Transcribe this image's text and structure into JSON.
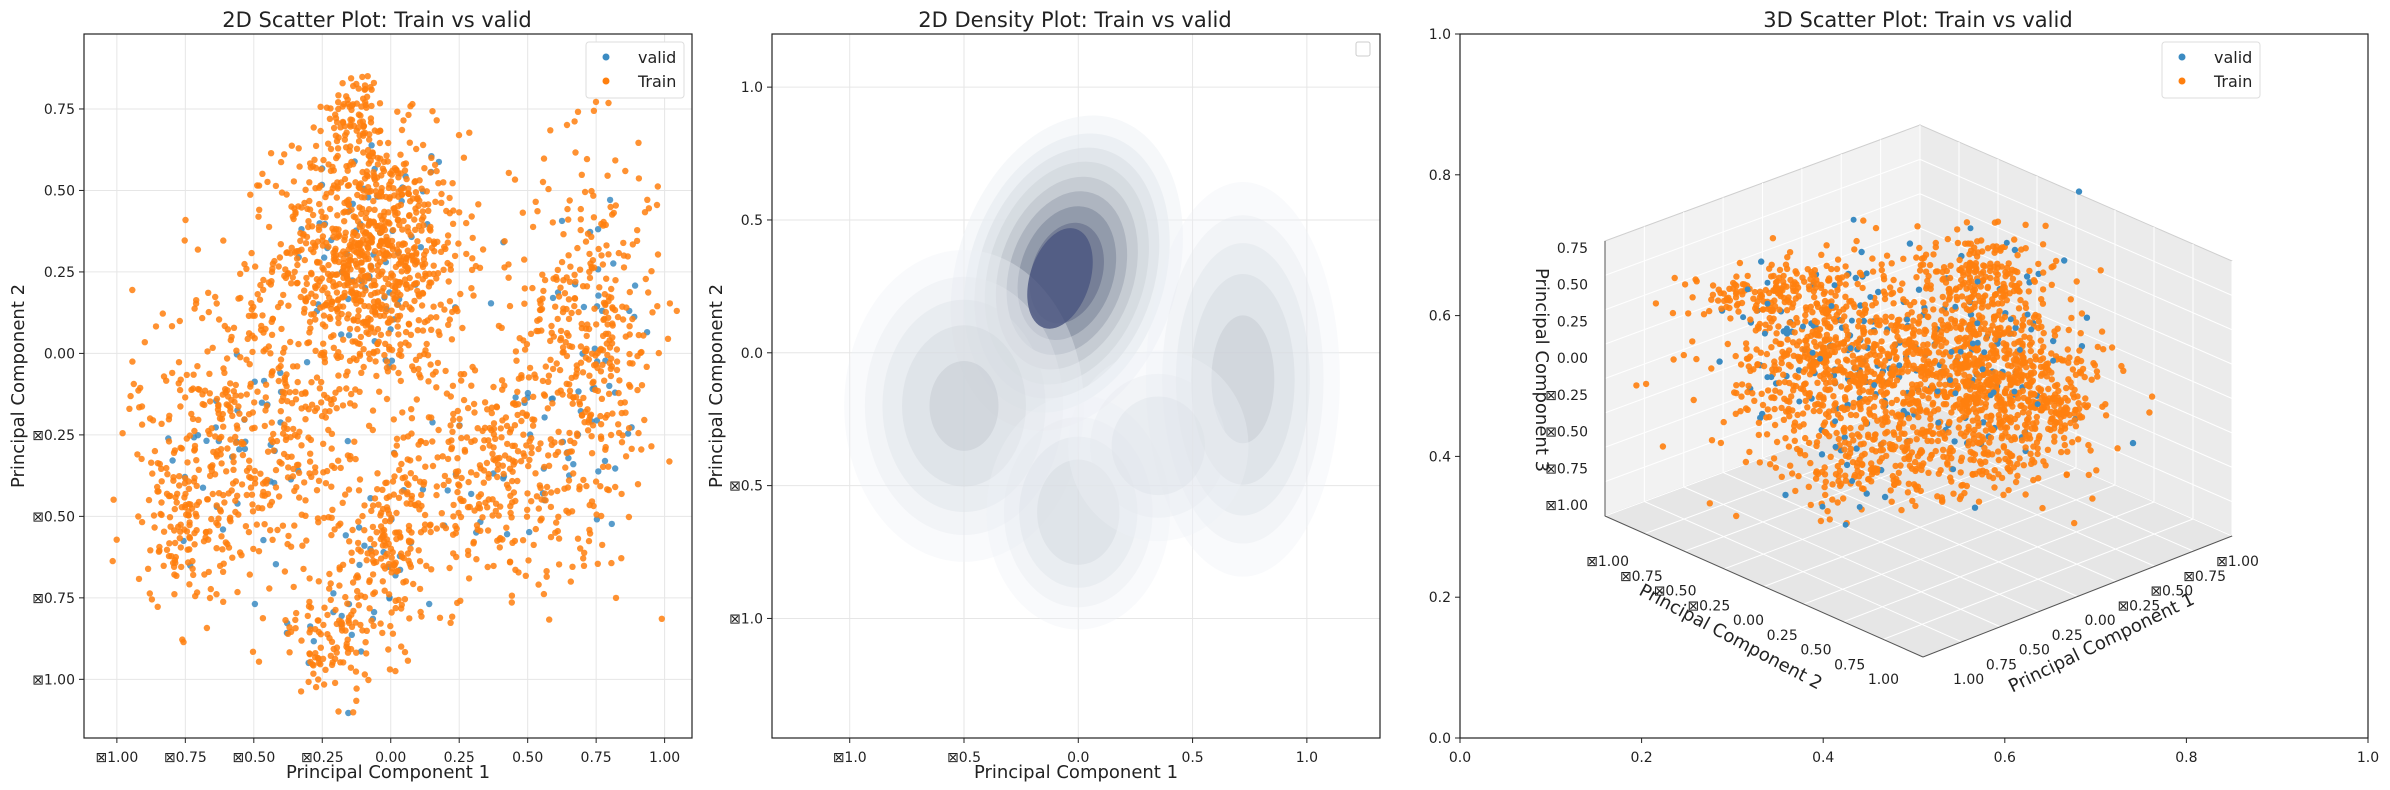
{
  "colors": {
    "valid": "#3b8bc2",
    "train": "#ff7f0e",
    "grid": "#e6e6e6",
    "axis": "#222222"
  },
  "chart_data": [
    {
      "type": "scatter",
      "title": "2D Scatter Plot: Train vs valid",
      "xlabel": "Principal Component 1",
      "ylabel": "Principal Component 2",
      "xlim": [
        -1.12,
        1.1
      ],
      "ylim": [
        -1.18,
        0.98
      ],
      "xticks": [
        -1.0,
        -0.75,
        -0.5,
        -0.25,
        0.0,
        0.25,
        0.5,
        0.75,
        1.0
      ],
      "xtick_labels": [
        "⊠1.00",
        "⊠0.75",
        "⊠0.50",
        "⊠0.25",
        "0.00",
        "0.25",
        "0.50",
        "0.75",
        "1.00"
      ],
      "yticks": [
        0.75,
        0.5,
        0.25,
        0.0,
        -0.25,
        -0.5,
        -0.75,
        -1.0
      ],
      "ytick_labels": [
        "0.75",
        "0.50",
        "0.25",
        "0.00",
        "⊠0.25",
        "⊠0.50",
        "⊠0.75",
        "⊠1.00"
      ],
      "grid": true,
      "legend_position": "top-right",
      "series": [
        {
          "name": "valid",
          "clusters": [
            {
              "cx": -0.05,
              "cy": 0.3,
              "sx": 0.15,
              "sy": 0.2,
              "n": 60
            },
            {
              "cx": 0.72,
              "cy": 0.0,
              "sx": 0.12,
              "sy": 0.3,
              "n": 45
            },
            {
              "cx": -0.55,
              "cy": -0.3,
              "sx": 0.17,
              "sy": 0.2,
              "n": 40
            },
            {
              "cx": 0.4,
              "cy": -0.35,
              "sx": 0.18,
              "sy": 0.15,
              "n": 25
            },
            {
              "cx": 0.0,
              "cy": -0.6,
              "sx": 0.1,
              "sy": 0.12,
              "n": 18
            },
            {
              "cx": -0.2,
              "cy": -0.85,
              "sx": 0.12,
              "sy": 0.08,
              "n": 15
            }
          ]
        },
        {
          "name": "Train",
          "clusters": [
            {
              "cx": -0.08,
              "cy": 0.3,
              "sx": 0.17,
              "sy": 0.19,
              "n": 900
            },
            {
              "cx": -0.12,
              "cy": 0.75,
              "sx": 0.05,
              "sy": 0.06,
              "n": 70
            },
            {
              "cx": 0.72,
              "cy": 0.05,
              "sx": 0.13,
              "sy": 0.3,
              "n": 380
            },
            {
              "cx": -0.5,
              "cy": -0.25,
              "sx": 0.22,
              "sy": 0.24,
              "n": 480
            },
            {
              "cx": 0.35,
              "cy": -0.35,
              "sx": 0.2,
              "sy": 0.18,
              "n": 320
            },
            {
              "cx": 0.0,
              "cy": -0.6,
              "sx": 0.1,
              "sy": 0.12,
              "n": 140
            },
            {
              "cx": -0.2,
              "cy": -0.88,
              "sx": 0.12,
              "sy": 0.09,
              "n": 110
            },
            {
              "cx": -0.75,
              "cy": -0.55,
              "sx": 0.12,
              "sy": 0.1,
              "n": 90
            }
          ]
        }
      ]
    },
    {
      "type": "density",
      "title": "2D Density Plot: Train vs valid",
      "xlabel": "Principal Component 1",
      "ylabel": "Principal Component 2",
      "xlim": [
        -1.34,
        1.32
      ],
      "ylim": [
        -1.45,
        1.2
      ],
      "xticks": [
        -1.0,
        -0.5,
        0.0,
        0.5,
        1.0
      ],
      "xtick_labels": [
        "⊠1.0",
        "⊠0.5",
        "0.0",
        "0.5",
        "1.0"
      ],
      "yticks": [
        1.0,
        0.5,
        0.0,
        -0.5,
        -1.0
      ],
      "ytick_labels": [
        "1.0",
        "0.5",
        "0.0",
        "⊠0.5",
        "⊠1.0"
      ],
      "grid": true,
      "legend_position": "top-right",
      "kernels": [
        {
          "cx": -0.05,
          "cy": 0.3,
          "sx": 0.19,
          "sy": 0.24,
          "w": 1.0
        },
        {
          "cx": 0.72,
          "cy": -0.1,
          "sx": 0.2,
          "sy": 0.35,
          "w": 0.38
        },
        {
          "cx": -0.5,
          "cy": -0.2,
          "sx": 0.25,
          "sy": 0.28,
          "w": 0.36
        },
        {
          "cx": 0.0,
          "cy": -0.6,
          "sx": 0.2,
          "sy": 0.22,
          "w": 0.3
        },
        {
          "cx": 0.35,
          "cy": -0.35,
          "sx": 0.22,
          "sy": 0.2,
          "w": 0.2
        }
      ]
    },
    {
      "type": "scatter3d",
      "title": "3D Scatter Plot: Train vs  valid",
      "xlabel": "Principal Component 1",
      "ylabel": "Principal Component 2",
      "zlabel": "Principal Component 3",
      "xticks3d": [
        "⊠1.00",
        "⊠0.75",
        "⊠0.50",
        "⊠0.25",
        "0.00",
        "0.25",
        "0.50",
        "0.75",
        "1.00"
      ],
      "yticks3d": [
        "⊠1.00",
        "⊠0.75",
        "⊠0.50",
        "⊠0.25",
        "0.00",
        "0.25",
        "0.50",
        "0.75",
        "1.00"
      ],
      "zticks3d": [
        "0.75",
        "0.50",
        "0.25",
        "0.00",
        "⊠0.25",
        "⊠0.50",
        "⊠0.75",
        "⊠1.00"
      ],
      "outer_xticks": [
        "0.0",
        "0.2",
        "0.4",
        "0.6",
        "0.8",
        "1.0"
      ],
      "outer_yticks": [
        "1.0",
        "0.8",
        "0.6",
        "0.4",
        "0.2",
        "0.0"
      ],
      "legend_position": "top-right",
      "series": [
        {
          "name": "valid"
        },
        {
          "name": "Train"
        }
      ]
    }
  ]
}
